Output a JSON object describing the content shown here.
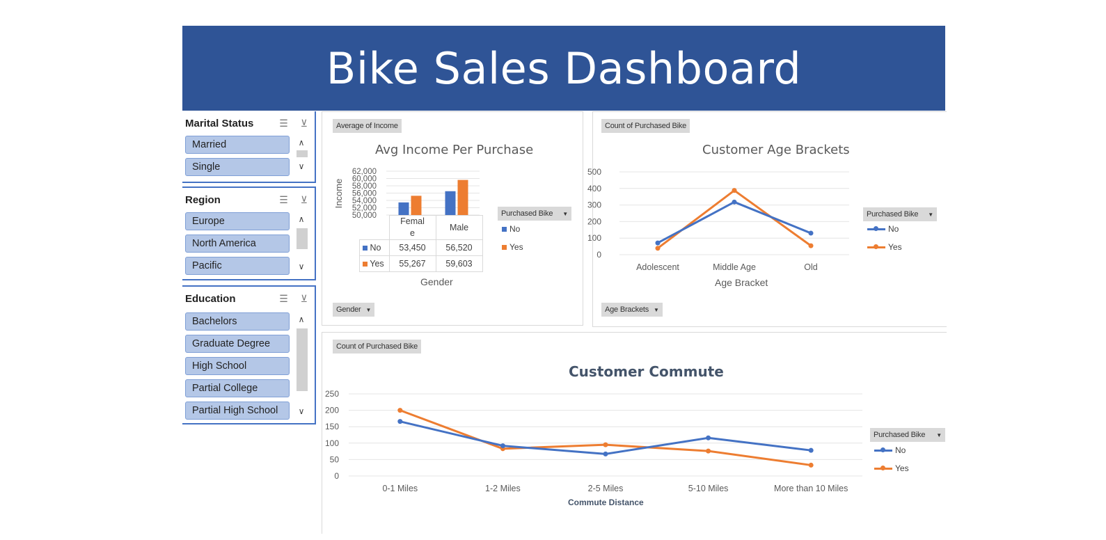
{
  "title": "Bike Sales Dashboard",
  "colors": {
    "banner": "#2f5496",
    "no": "#4472c4",
    "yes": "#ed7d31",
    "slicer_item": "#b4c7e7"
  },
  "slicers": {
    "marital": {
      "title": "Marital Status",
      "items": [
        "Married",
        "Single"
      ]
    },
    "region": {
      "title": "Region",
      "items": [
        "Europe",
        "North America",
        "Pacific"
      ]
    },
    "education": {
      "title": "Education",
      "items": [
        "Bachelors",
        "Graduate Degree",
        "High School",
        "Partial College",
        "Partial High School"
      ]
    },
    "icons": {
      "multiselect": "multi-select-icon",
      "clear": "clear-filter-icon",
      "up": "scroll-up-icon",
      "down": "scroll-down-icon"
    }
  },
  "income_chart": {
    "field_button": "Average of Income",
    "axis_button": "Gender",
    "legend_button": "Purchased Bike",
    "legend": [
      "No",
      "Yes"
    ],
    "table": {
      "headers": [
        "Femal\ne",
        "Male"
      ],
      "rows": [
        {
          "label": "No",
          "values": [
            "53,450",
            "56,520"
          ]
        },
        {
          "label": "Yes",
          "values": [
            "55,267",
            "59,603"
          ]
        }
      ]
    }
  },
  "age_chart": {
    "field_button": "Count of Purchased Bike",
    "axis_button": "Age Brackets",
    "legend_button": "Purchased Bike",
    "legend": [
      "No",
      "Yes"
    ]
  },
  "commute_chart": {
    "field_button": "Count of Purchased Bike",
    "legend_button": "Purchased Bike",
    "legend": [
      "No",
      "Yes"
    ]
  },
  "chart_data": [
    {
      "type": "bar",
      "title": "Avg Income Per Purchase",
      "xlabel": "Gender",
      "ylabel": "Income",
      "categories": [
        "Female",
        "Male"
      ],
      "series": [
        {
          "name": "No",
          "values": [
            53450,
            56520
          ]
        },
        {
          "name": "Yes",
          "values": [
            55267,
            59603
          ]
        }
      ],
      "ylim": [
        50000,
        62000
      ],
      "yticks": [
        "50,000",
        "52,000",
        "54,000",
        "56,000",
        "58,000",
        "60,000",
        "62,000"
      ],
      "grid": true,
      "legend": "right"
    },
    {
      "type": "line",
      "title": "Customer Age Brackets",
      "xlabel": "Age Bracket",
      "ylabel": "",
      "categories": [
        "Adolescent",
        "Middle Age",
        "Old"
      ],
      "series": [
        {
          "name": "No",
          "values": [
            71,
            318,
            130
          ]
        },
        {
          "name": "Yes",
          "values": [
            39,
            388,
            54
          ]
        }
      ],
      "ylim": [
        0,
        500
      ],
      "yticks": [
        "0",
        "100",
        "200",
        "300",
        "400",
        "500"
      ],
      "grid": true,
      "legend": "right"
    },
    {
      "type": "line",
      "title": "Customer Commute",
      "xlabel": "Commute Distance",
      "ylabel": "",
      "categories": [
        "0-1 Miles",
        "1-2 Miles",
        "2-5 Miles",
        "5-10 Miles",
        "More than 10 Miles"
      ],
      "series": [
        {
          "name": "No",
          "values": [
            166,
            92,
            67,
            116,
            78
          ]
        },
        {
          "name": "Yes",
          "values": [
            200,
            83,
            95,
            76,
            33
          ]
        }
      ],
      "ylim": [
        0,
        250
      ],
      "yticks": [
        "0",
        "50",
        "100",
        "150",
        "200",
        "250"
      ],
      "grid": true,
      "legend": "right"
    }
  ]
}
